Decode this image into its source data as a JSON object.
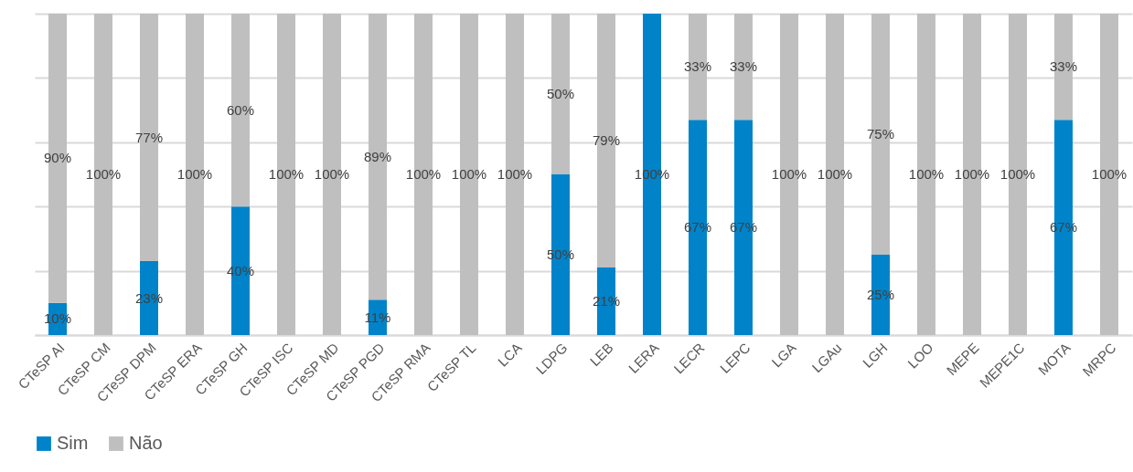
{
  "chart_data": {
    "type": "bar",
    "stacked": true,
    "categories": [
      "CTeSP AI",
      "CTeSP CM",
      "CTeSP DPM",
      "CTeSP ERA",
      "CTeSP GH",
      "CTeSP ISC",
      "CTeSP MD",
      "CTeSP PGD",
      "CTeSP RMA",
      "CTeSP TL",
      "LCA",
      "LDPG",
      "LEB",
      "LERA",
      "LECR",
      "LEPC",
      "LGA",
      "LGAu",
      "LGH",
      "LOO",
      "MEPE",
      "MEPE1C",
      "MOTA",
      "MRPC"
    ],
    "series": [
      {
        "name": "Sim",
        "color": "#0083c9",
        "values": [
          10,
          0,
          23,
          0,
          40,
          0,
          0,
          11,
          0,
          0,
          0,
          50,
          21,
          100,
          67,
          67,
          0,
          0,
          25,
          0,
          0,
          0,
          67,
          0
        ],
        "value_labels": [
          "10%",
          null,
          "23%",
          null,
          "40%",
          null,
          null,
          "11%",
          null,
          null,
          null,
          "50%",
          "21%",
          "100%",
          "67%",
          "67%",
          null,
          null,
          "25%",
          null,
          null,
          null,
          "67%",
          null
        ]
      },
      {
        "name": "Não",
        "color": "#bfbfbf",
        "values": [
          90,
          100,
          77,
          100,
          60,
          100,
          100,
          89,
          100,
          100,
          100,
          50,
          79,
          0,
          33,
          33,
          100,
          100,
          75,
          100,
          100,
          100,
          33,
          100
        ],
        "value_labels": [
          "90%",
          "100%",
          "77%",
          "100%",
          "60%",
          "100%",
          "100%",
          "89%",
          "100%",
          "100%",
          "100%",
          "50%",
          "79%",
          null,
          "33%",
          "33%",
          "100%",
          "100%",
          "75%",
          "100%",
          "100%",
          "100%",
          "33%",
          "100%"
        ]
      }
    ],
    "ylim": [
      0,
      100
    ],
    "yticks": [
      {
        "value": 0,
        "label": null
      },
      {
        "value": 20,
        "label": null
      },
      {
        "value": 40,
        "label": null
      },
      {
        "value": 60,
        "label": null
      },
      {
        "value": 80,
        "label": null
      },
      {
        "value": 100,
        "label": null
      }
    ],
    "tick_labels": "x",
    "grid": "y",
    "legend": "bottom"
  }
}
